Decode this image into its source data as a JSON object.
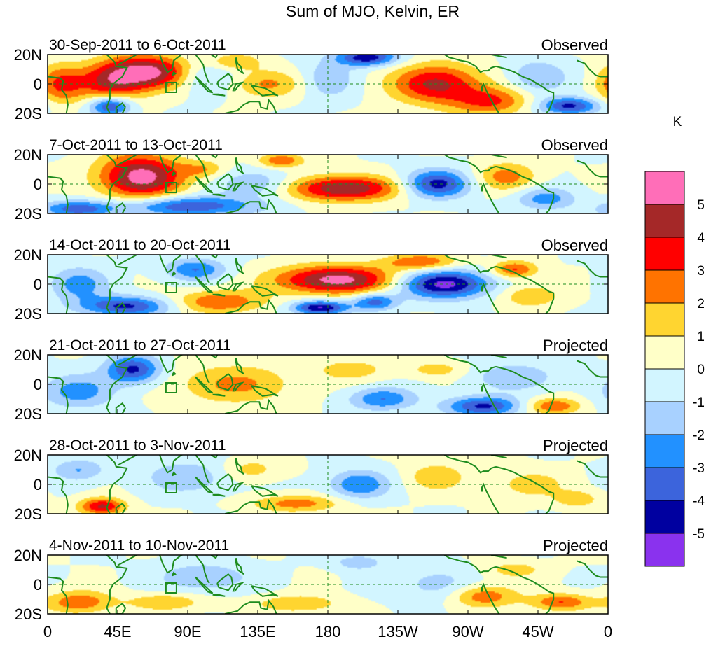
{
  "chart_data": {
    "type": "heatmap",
    "title": "Sum of MJO, Kelvin, ER",
    "x_ticks": [
      "0",
      "45E",
      "90E",
      "135E",
      "180",
      "135W",
      "90W",
      "45W",
      "0"
    ],
    "x_range": [
      0,
      360
    ],
    "y_ticks": [
      "20N",
      "0",
      "20S"
    ],
    "y_range": [
      -20,
      20
    ],
    "colorbar": {
      "unit": "K",
      "labels": [
        "5",
        "4",
        "3",
        "2",
        "1",
        "0",
        "-1",
        "-2",
        "-3",
        "-4",
        "-5"
      ],
      "colors": [
        "#ff6eb8",
        "#a52828",
        "#ff0000",
        "#ff7300",
        "#ffd530",
        "#ffffc8",
        "#d2f5ff",
        "#a8d1ff",
        "#2291ff",
        "#3c64dc",
        "#0000a0",
        "#8a32ee"
      ]
    },
    "panels": [
      {
        "date_range": "30-Sep-2011 to 6-Oct-2011",
        "tag": "Observed",
        "blobs": [
          {
            "lon": 65,
            "lat": 8,
            "value": 5.5,
            "rlon": 30,
            "rlat": 12
          },
          {
            "lon": 40,
            "lat": 0,
            "value": 3.2,
            "rlon": 22,
            "rlat": 14
          },
          {
            "lon": 8,
            "lat": 0,
            "value": 3.0,
            "rlon": 16,
            "rlat": 14
          },
          {
            "lon": 40,
            "lat": -15,
            "value": -4.5,
            "rlon": 14,
            "rlat": 7
          },
          {
            "lon": 205,
            "lat": 18,
            "value": -4.8,
            "rlon": 20,
            "rlat": 6
          },
          {
            "lon": 250,
            "lat": 0,
            "value": 4.3,
            "rlon": 30,
            "rlat": 14
          },
          {
            "lon": 285,
            "lat": -12,
            "value": 3.0,
            "rlon": 26,
            "rlat": 10
          },
          {
            "lon": 335,
            "lat": -15,
            "value": -4.3,
            "rlon": 20,
            "rlat": 6
          },
          {
            "lon": 140,
            "lat": 0,
            "value": 2.2,
            "rlon": 25,
            "rlat": 10
          },
          {
            "lon": 100,
            "lat": 5,
            "value": -2.0,
            "rlon": 22,
            "rlat": 12
          },
          {
            "lon": 180,
            "lat": 3,
            "value": -1.8,
            "rlon": 18,
            "rlat": 14
          },
          {
            "lon": 120,
            "lat": 15,
            "value": 2.0,
            "rlon": 18,
            "rlat": 6
          },
          {
            "lon": 315,
            "lat": 5,
            "value": -2.0,
            "rlon": 20,
            "rlat": 12
          }
        ]
      },
      {
        "date_range": "7-Oct-2011 to 13-Oct-2011",
        "tag": "Observed",
        "blobs": [
          {
            "lon": 60,
            "lat": 5,
            "value": 5.6,
            "rlon": 28,
            "rlat": 16
          },
          {
            "lon": 190,
            "lat": -3,
            "value": 5.0,
            "rlon": 38,
            "rlat": 9
          },
          {
            "lon": 250,
            "lat": 0,
            "value": -4.5,
            "rlon": 22,
            "rlat": 10
          },
          {
            "lon": 90,
            "lat": -15,
            "value": -4.0,
            "rlon": 45,
            "rlat": 7
          },
          {
            "lon": 20,
            "lat": -17,
            "value": -3.5,
            "rlon": 25,
            "rlat": 6
          },
          {
            "lon": 150,
            "lat": 16,
            "value": 3.0,
            "rlon": 15,
            "rlat": 5
          },
          {
            "lon": 295,
            "lat": 5,
            "value": 2.5,
            "rlon": 20,
            "rlat": 10
          },
          {
            "lon": 135,
            "lat": 0,
            "value": -2.0,
            "rlon": 25,
            "rlat": 10
          },
          {
            "lon": 320,
            "lat": -10,
            "value": -2.5,
            "rlon": 20,
            "rlat": 8
          },
          {
            "lon": 100,
            "lat": 10,
            "value": 1.8,
            "rlon": 15,
            "rlat": 6
          }
        ]
      },
      {
        "date_range": "14-Oct-2011 to 20-Oct-2011",
        "tag": "Observed",
        "blobs": [
          {
            "lon": 185,
            "lat": 3,
            "value": 5.5,
            "rlon": 40,
            "rlat": 10
          },
          {
            "lon": 255,
            "lat": 0,
            "value": -5.5,
            "rlon": 30,
            "rlat": 10
          },
          {
            "lon": 110,
            "lat": -12,
            "value": 3.0,
            "rlon": 30,
            "rlat": 8
          },
          {
            "lon": 175,
            "lat": -16,
            "value": -5.2,
            "rlon": 18,
            "rlat": 5
          },
          {
            "lon": 50,
            "lat": -15,
            "value": -4.2,
            "rlon": 30,
            "rlat": 7
          },
          {
            "lon": 95,
            "lat": 10,
            "value": -3.0,
            "rlon": 20,
            "rlat": 8
          },
          {
            "lon": 240,
            "lat": 15,
            "value": 3.0,
            "rlon": 25,
            "rlat": 6
          },
          {
            "lon": 300,
            "lat": 10,
            "value": 3.2,
            "rlon": 15,
            "rlat": 6
          },
          {
            "lon": 20,
            "lat": 0,
            "value": -2.5,
            "rlon": 20,
            "rlat": 12
          },
          {
            "lon": 210,
            "lat": -12,
            "value": -3.5,
            "rlon": 15,
            "rlat": 6
          },
          {
            "lon": 310,
            "lat": -8,
            "value": 2.0,
            "rlon": 20,
            "rlat": 8
          }
        ]
      },
      {
        "date_range": "21-Oct-2011 to 27-Oct-2011",
        "tag": "Projected",
        "blobs": [
          {
            "lon": 55,
            "lat": 10,
            "value": -4.3,
            "rlon": 18,
            "rlat": 10
          },
          {
            "lon": 120,
            "lat": 0,
            "value": 2.2,
            "rlon": 40,
            "rlat": 14
          },
          {
            "lon": 280,
            "lat": -15,
            "value": -4.2,
            "rlon": 25,
            "rlat": 7
          },
          {
            "lon": 325,
            "lat": -15,
            "value": 3.0,
            "rlon": 18,
            "rlat": 6
          },
          {
            "lon": 20,
            "lat": -5,
            "value": -2.5,
            "rlon": 25,
            "rlat": 12
          },
          {
            "lon": 215,
            "lat": -10,
            "value": -3.0,
            "rlon": 22,
            "rlat": 8
          },
          {
            "lon": 195,
            "lat": 10,
            "value": 1.5,
            "rlon": 25,
            "rlat": 8
          },
          {
            "lon": 300,
            "lat": 5,
            "value": -1.8,
            "rlon": 30,
            "rlat": 10
          },
          {
            "lon": 250,
            "lat": 10,
            "value": 1.5,
            "rlon": 20,
            "rlat": 6
          }
        ]
      },
      {
        "date_range": "28-Oct-2011 to 3-Nov-2011",
        "tag": "Projected",
        "blobs": [
          {
            "lon": 35,
            "lat": -15,
            "value": 4.2,
            "rlon": 15,
            "rlat": 6
          },
          {
            "lon": 160,
            "lat": -13,
            "value": 2.5,
            "rlon": 30,
            "rlat": 6
          },
          {
            "lon": 200,
            "lat": 0,
            "value": -3.0,
            "rlon": 20,
            "rlat": 10
          },
          {
            "lon": 90,
            "lat": 5,
            "value": -1.8,
            "rlon": 30,
            "rlat": 12
          },
          {
            "lon": 250,
            "lat": 5,
            "value": 1.8,
            "rlon": 20,
            "rlat": 10
          },
          {
            "lon": 310,
            "lat": 0,
            "value": 1.5,
            "rlon": 25,
            "rlat": 10
          },
          {
            "lon": 130,
            "lat": 10,
            "value": 1.5,
            "rlon": 20,
            "rlat": 8
          },
          {
            "lon": 20,
            "lat": 10,
            "value": -2.0,
            "rlon": 18,
            "rlat": 8
          },
          {
            "lon": 340,
            "lat": -10,
            "value": 1.8,
            "rlon": 15,
            "rlat": 6
          }
        ]
      },
      {
        "date_range": "4-Nov-2011 to 10-Nov-2011",
        "tag": "Projected",
        "blobs": [
          {
            "lon": 20,
            "lat": -12,
            "value": 2.8,
            "rlon": 22,
            "rlat": 8
          },
          {
            "lon": 75,
            "lat": -12,
            "value": 2.0,
            "rlon": 25,
            "rlat": 6
          },
          {
            "lon": 160,
            "lat": -13,
            "value": 2.0,
            "rlon": 28,
            "rlat": 6
          },
          {
            "lon": 280,
            "lat": -8,
            "value": 2.8,
            "rlon": 22,
            "rlat": 8
          },
          {
            "lon": 330,
            "lat": -12,
            "value": 3.0,
            "rlon": 20,
            "rlat": 6
          },
          {
            "lon": 100,
            "lat": 5,
            "value": -2.0,
            "rlon": 30,
            "rlat": 10
          },
          {
            "lon": 200,
            "lat": 15,
            "value": -2.0,
            "rlon": 15,
            "rlat": 5
          },
          {
            "lon": 250,
            "lat": 0,
            "value": -1.5,
            "rlon": 25,
            "rlat": 12
          },
          {
            "lon": 300,
            "lat": 10,
            "value": 1.5,
            "rlon": 20,
            "rlat": 6
          }
        ]
      }
    ]
  }
}
